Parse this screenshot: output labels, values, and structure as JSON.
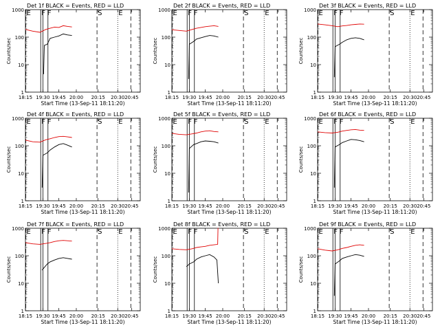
{
  "figure": {
    "xlabel": "Start Time (13-Sep-11 18:11:20)",
    "ylabel": "Counts/sec",
    "xticks": [
      "18:15",
      "19:30",
      "19:45",
      "20:00",
      "20:15",
      "20:30",
      "20:45"
    ],
    "yticks": [
      "1",
      "10",
      "100",
      "1000"
    ]
  },
  "chart_data": [
    {
      "type": "line",
      "title": "Det 1f BLACK = Events, RED = LLD",
      "xlabel": "Start Time (13-Sep-11 18:11:20)",
      "ylabel": "Counts/sec",
      "ylim": [
        1,
        1000
      ],
      "yscale": "log",
      "markers": [
        {
          "x": 0.5,
          "label": "E",
          "style": "dashed"
        },
        {
          "x": 98.5,
          "label": "S",
          "style": "dashed"
        },
        {
          "x": 127,
          "label": "E",
          "style": "dotted"
        },
        {
          "x": 145,
          "label": "",
          "style": "dashed"
        }
      ],
      "series": [
        {
          "name": "LLD",
          "color": "#e00000",
          "points": [
            [
              0,
              190
            ],
            [
              10,
              165
            ],
            [
              20,
              150
            ],
            [
              28,
              190
            ],
            [
              34,
              210
            ],
            [
              40,
              230
            ],
            [
              46,
              225
            ],
            [
              52,
              260
            ],
            [
              58,
              245
            ],
            [
              64,
              235
            ]
          ]
        },
        {
          "name": "Events",
          "color": "#000000",
          "points": [
            [
              25,
              4.5
            ],
            [
              26,
              50
            ],
            [
              30,
              55
            ],
            [
              34,
              90
            ],
            [
              40,
              100
            ],
            [
              46,
              110
            ],
            [
              52,
              130
            ],
            [
              58,
              120
            ],
            [
              64,
              115
            ]
          ]
        }
      ]
    },
    {
      "type": "line",
      "title": "Det 2f BLACK = Events, RED = LLD",
      "xlabel": "Start Time (13-Sep-11 18:11:20)",
      "ylabel": "Counts/sec",
      "ylim": [
        1,
        1000
      ],
      "yscale": "log",
      "markers": [
        {
          "x": 0.5,
          "label": "E",
          "style": "dashed"
        },
        {
          "x": 98.5,
          "label": "S",
          "style": "dashed"
        },
        {
          "x": 127,
          "label": "E",
          "style": "dotted"
        },
        {
          "x": 145,
          "label": "",
          "style": "dashed"
        }
      ],
      "series": [
        {
          "name": "LLD",
          "color": "#e00000",
          "points": [
            [
              0,
              185
            ],
            [
              10,
              175
            ],
            [
              20,
              165
            ],
            [
              28,
              190
            ],
            [
              34,
              210
            ],
            [
              40,
              225
            ],
            [
              46,
              240
            ],
            [
              52,
              250
            ],
            [
              58,
              260
            ],
            [
              64,
              245
            ]
          ]
        },
        {
          "name": "Events",
          "color": "#000000",
          "points": [
            [
              23,
              3
            ],
            [
              24,
              55
            ],
            [
              30,
              70
            ],
            [
              34,
              85
            ],
            [
              40,
              95
            ],
            [
              46,
              105
            ],
            [
              52,
              115
            ],
            [
              58,
              110
            ],
            [
              64,
              100
            ]
          ]
        }
      ]
    },
    {
      "type": "line",
      "title": "Det 3f BLACK = Events, RED = LLD",
      "xlabel": "Start Time (13-Sep-11 18:11:20)",
      "ylabel": "Counts/sec",
      "ylim": [
        1,
        1000
      ],
      "yscale": "log",
      "markers": [
        {
          "x": 0.5,
          "label": "E",
          "style": "dashed"
        },
        {
          "x": 98.5,
          "label": "S",
          "style": "dashed"
        },
        {
          "x": 127,
          "label": "E",
          "style": "dotted"
        },
        {
          "x": 145,
          "label": "",
          "style": "dashed"
        }
      ],
      "series": [
        {
          "name": "LLD",
          "color": "#e00000",
          "points": [
            [
              0,
              300
            ],
            [
              10,
              280
            ],
            [
              20,
              260
            ],
            [
              28,
              240
            ],
            [
              34,
              255
            ],
            [
              40,
              265
            ],
            [
              46,
              280
            ],
            [
              52,
              290
            ],
            [
              58,
              300
            ],
            [
              64,
              295
            ]
          ]
        },
        {
          "name": "Events",
          "color": "#000000",
          "points": [
            [
              23,
              3.5
            ],
            [
              24,
              45
            ],
            [
              30,
              55
            ],
            [
              34,
              65
            ],
            [
              40,
              80
            ],
            [
              46,
              90
            ],
            [
              52,
              95
            ],
            [
              58,
              90
            ],
            [
              64,
              80
            ]
          ]
        }
      ]
    },
    {
      "type": "line",
      "title": "Det 4f BLACK = Events, RED = LLD",
      "xlabel": "Start Time (13-Sep-11 18:11:20)",
      "ylabel": "Counts/sec",
      "ylim": [
        1,
        1000
      ],
      "yscale": "log",
      "markers": [
        {
          "x": 0.5,
          "label": "E",
          "style": "dashed"
        },
        {
          "x": 98.5,
          "label": "S",
          "style": "dashed"
        },
        {
          "x": 127,
          "label": "E",
          "style": "dotted"
        },
        {
          "x": 145,
          "label": "",
          "style": "dashed"
        }
      ],
      "series": [
        {
          "name": "LLD",
          "color": "#e00000",
          "points": [
            [
              0,
              160
            ],
            [
              10,
              140
            ],
            [
              20,
              135
            ],
            [
              28,
              165
            ],
            [
              34,
              180
            ],
            [
              40,
              200
            ],
            [
              46,
              215
            ],
            [
              52,
              220
            ],
            [
              58,
              210
            ],
            [
              64,
              200
            ]
          ]
        },
        {
          "name": "Events",
          "color": "#000000",
          "points": [
            [
              23,
              3
            ],
            [
              24,
              45
            ],
            [
              30,
              55
            ],
            [
              34,
              70
            ],
            [
              40,
              90
            ],
            [
              46,
              110
            ],
            [
              52,
              120
            ],
            [
              58,
              105
            ],
            [
              64,
              90
            ]
          ]
        }
      ]
    },
    {
      "type": "line",
      "title": "Det 5f BLACK = Events, RED = LLD",
      "xlabel": "Start Time (13-Sep-11 18:11:20)",
      "ylabel": "Counts/sec",
      "ylim": [
        1,
        1000
      ],
      "yscale": "log",
      "markers": [
        {
          "x": 0.5,
          "label": "E",
          "style": "dashed"
        },
        {
          "x": 98.5,
          "label": "S",
          "style": "dashed"
        },
        {
          "x": 127,
          "label": "E",
          "style": "dotted"
        },
        {
          "x": 145,
          "label": "",
          "style": "dashed"
        }
      ],
      "series": [
        {
          "name": "LLD",
          "color": "#e00000",
          "points": [
            [
              0,
              280
            ],
            [
              10,
              260
            ],
            [
              20,
              250
            ],
            [
              28,
              270
            ],
            [
              34,
              290
            ],
            [
              40,
              320
            ],
            [
              46,
              340
            ],
            [
              52,
              350
            ],
            [
              58,
              330
            ],
            [
              64,
              320
            ]
          ]
        },
        {
          "name": "Events",
          "color": "#000000",
          "points": [
            [
              23,
              2
            ],
            [
              24,
              80
            ],
            [
              30,
              110
            ],
            [
              34,
              120
            ],
            [
              40,
              140
            ],
            [
              46,
              150
            ],
            [
              52,
              145
            ],
            [
              58,
              140
            ],
            [
              64,
              125
            ]
          ]
        }
      ]
    },
    {
      "type": "line",
      "title": "Det 6f BLACK = Events, RED = LLD",
      "xlabel": "Start Time (13-Sep-11 18:11:20)",
      "ylabel": "Counts/sec",
      "ylim": [
        1,
        1000
      ],
      "yscale": "log",
      "markers": [
        {
          "x": 0.5,
          "label": "E",
          "style": "dashed"
        },
        {
          "x": 98.5,
          "label": "S",
          "style": "dashed"
        },
        {
          "x": 127,
          "label": "E",
          "style": "dotted"
        },
        {
          "x": 145,
          "label": "",
          "style": "dashed"
        }
      ],
      "series": [
        {
          "name": "LLD",
          "color": "#e00000",
          "points": [
            [
              0,
              320
            ],
            [
              10,
              300
            ],
            [
              20,
              290
            ],
            [
              28,
              310
            ],
            [
              34,
              340
            ],
            [
              40,
              360
            ],
            [
              46,
              380
            ],
            [
              52,
              390
            ],
            [
              58,
              370
            ],
            [
              64,
              360
            ]
          ]
        },
        {
          "name": "Events",
          "color": "#000000",
          "points": [
            [
              23,
              3
            ],
            [
              24,
              90
            ],
            [
              30,
              110
            ],
            [
              34,
              130
            ],
            [
              40,
              150
            ],
            [
              46,
              170
            ],
            [
              52,
              165
            ],
            [
              58,
              155
            ],
            [
              64,
              140
            ]
          ]
        }
      ]
    },
    {
      "type": "line",
      "title": "Det 7f BLACK = Events, RED = LLD",
      "xlabel": "Start Time (13-Sep-11 18:11:20)",
      "ylabel": "Counts/sec",
      "ylim": [
        1,
        1000
      ],
      "yscale": "log",
      "markers": [
        {
          "x": 0.5,
          "label": "E",
          "style": "dashed"
        },
        {
          "x": 98.5,
          "label": "S",
          "style": "dashed"
        },
        {
          "x": 127,
          "label": "E",
          "style": "dotted"
        },
        {
          "x": 145,
          "label": "",
          "style": "dashed"
        }
      ],
      "series": [
        {
          "name": "LLD",
          "color": "#e00000",
          "points": [
            [
              0,
              300
            ],
            [
              10,
              270
            ],
            [
              20,
              260
            ],
            [
              28,
              280
            ],
            [
              34,
              300
            ],
            [
              40,
              330
            ],
            [
              46,
              350
            ],
            [
              52,
              360
            ],
            [
              58,
              350
            ],
            [
              64,
              340
            ]
          ]
        },
        {
          "name": "Events",
          "color": "#000000",
          "points": [
            [
              23,
              30
            ],
            [
              25,
              35
            ],
            [
              30,
              50
            ],
            [
              34,
              60
            ],
            [
              40,
              70
            ],
            [
              46,
              80
            ],
            [
              52,
              85
            ],
            [
              58,
              80
            ],
            [
              64,
              75
            ]
          ]
        }
      ]
    },
    {
      "type": "line",
      "title": "Det 8f BLACK = Events, RED = LLD",
      "xlabel": "Start Time (13-Sep-11 18:11:20)",
      "ylabel": "Counts/sec",
      "ylim": [
        1,
        1000
      ],
      "yscale": "log",
      "markers": [
        {
          "x": 0.5,
          "label": "E",
          "style": "dashed"
        },
        {
          "x": 98.5,
          "label": "S",
          "style": "dashed"
        },
        {
          "x": 127,
          "label": "E",
          "style": "dotted"
        },
        {
          "x": 145,
          "label": "",
          "style": "dashed"
        }
      ],
      "series": [
        {
          "name": "LLD",
          "color": "#e00000",
          "points": [
            [
              0,
              180
            ],
            [
              10,
              170
            ],
            [
              20,
              165
            ],
            [
              28,
              180
            ],
            [
              34,
              200
            ],
            [
              40,
              210
            ],
            [
              46,
              220
            ],
            [
              52,
              240
            ],
            [
              58,
              250
            ],
            [
              63,
              260
            ],
            [
              63.5,
              1000
            ],
            [
              64,
              1000
            ]
          ]
        },
        {
          "name": "Events",
          "color": "#000000",
          "points": [
            [
              20,
              40
            ],
            [
              24,
              50
            ],
            [
              30,
              60
            ],
            [
              34,
              75
            ],
            [
              40,
              90
            ],
            [
              46,
              100
            ],
            [
              52,
              110
            ],
            [
              58,
              90
            ],
            [
              62,
              70
            ],
            [
              64,
              10
            ]
          ]
        }
      ]
    },
    {
      "type": "line",
      "title": "Det 9f BLACK = Events, RED = LLD",
      "xlabel": "Start Time (13-Sep-11 18:11:20)",
      "ylabel": "Counts/sec",
      "ylim": [
        1,
        1000
      ],
      "yscale": "log",
      "markers": [
        {
          "x": 0.5,
          "label": "E",
          "style": "dashed"
        },
        {
          "x": 98.5,
          "label": "S",
          "style": "dashed"
        },
        {
          "x": 127,
          "label": "E",
          "style": "dotted"
        },
        {
          "x": 145,
          "label": "",
          "style": "dashed"
        }
      ],
      "series": [
        {
          "name": "LLD",
          "color": "#e00000",
          "points": [
            [
              0,
              180
            ],
            [
              10,
              160
            ],
            [
              20,
              150
            ],
            [
              28,
              165
            ],
            [
              34,
              185
            ],
            [
              40,
              200
            ],
            [
              46,
              220
            ],
            [
              52,
              240
            ],
            [
              58,
              250
            ],
            [
              64,
              240
            ]
          ]
        },
        {
          "name": "Events",
          "color": "#000000",
          "points": [
            [
              23,
              3.5
            ],
            [
              24,
              50
            ],
            [
              30,
              65
            ],
            [
              34,
              80
            ],
            [
              40,
              90
            ],
            [
              46,
              100
            ],
            [
              52,
              110
            ],
            [
              58,
              105
            ],
            [
              64,
              95
            ]
          ]
        }
      ]
    }
  ]
}
